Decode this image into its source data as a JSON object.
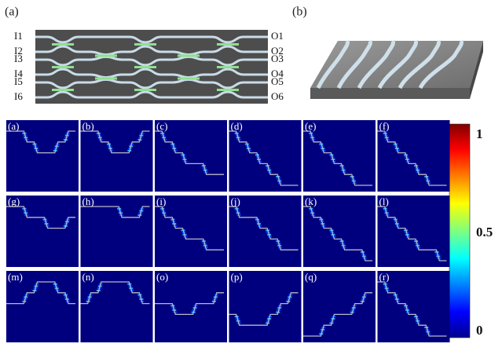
{
  "figure": {
    "panel_a": {
      "label": "(a)",
      "inputs": [
        "I1",
        "I2",
        "I3",
        "I4",
        "I5",
        "I6"
      ],
      "outputs": [
        "O1",
        "O2",
        "O3",
        "O4",
        "O5",
        "O6"
      ]
    },
    "panel_b": {
      "label": "(b)"
    },
    "subplots": [
      "(a)",
      "(b)",
      "(c)",
      "(d)",
      "(e)",
      "(f)",
      "(g)",
      "(h)",
      "(i)",
      "(j)",
      "(k)",
      "(l)",
      "(m)",
      "(n)",
      "(o)",
      "(p)",
      "(q)",
      "(r)"
    ],
    "colorbar": {
      "ticks": [
        1,
        0.5,
        0
      ]
    }
  }
}
